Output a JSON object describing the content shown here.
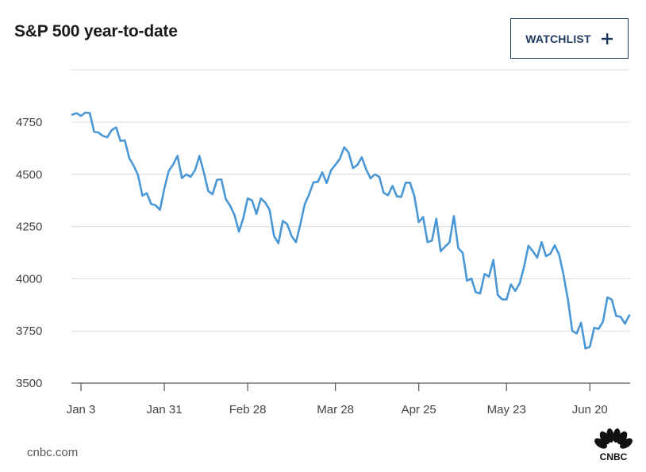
{
  "title": "S&P 500 year-to-date",
  "watchlist": {
    "label": "WATCHLIST",
    "icon": "plus-icon",
    "color": "#1e3a5f"
  },
  "source": "cnbc.com",
  "logo": {
    "name": "cnbc-peacock-logo",
    "text": "CNBC"
  },
  "chart_data": {
    "type": "line",
    "title": "S&P 500 year-to-date",
    "xlabel": "",
    "ylabel": "",
    "ylim": [
      3500,
      4850
    ],
    "yticks": [
      3500,
      3750,
      4000,
      4250,
      4500,
      4750
    ],
    "ytick_labels": [
      "3500",
      "3750",
      "4000",
      "4250",
      "4500",
      "4750"
    ],
    "xticks": [
      {
        "label": "Jan 3",
        "index": 2
      },
      {
        "label": "Jan 31",
        "index": 21
      },
      {
        "label": "Feb 28",
        "index": 40
      },
      {
        "label": "Mar 28",
        "index": 60
      },
      {
        "label": "Apr 25",
        "index": 79
      },
      {
        "label": "May 23",
        "index": 99
      },
      {
        "label": "Jun 20",
        "index": 118
      }
    ],
    "grid": true,
    "color": "#4a97d6",
    "series": [
      {
        "values": [
          4786,
          4793,
          4780,
          4796,
          4794,
          4704,
          4700,
          4684,
          4678,
          4712,
          4725,
          4660,
          4663,
          4578,
          4542,
          4496,
          4398,
          4410,
          4358,
          4352,
          4330,
          4432,
          4516,
          4547,
          4589,
          4482,
          4500,
          4488,
          4520,
          4588,
          4510,
          4420,
          4405,
          4474,
          4476,
          4382,
          4350,
          4305,
          4226,
          4290,
          4385,
          4375,
          4310,
          4385,
          4365,
          4330,
          4205,
          4170,
          4277,
          4262,
          4205,
          4175,
          4260,
          4357,
          4404,
          4462,
          4464,
          4510,
          4458,
          4520,
          4546,
          4574,
          4630,
          4605,
          4530,
          4545,
          4582,
          4524,
          4481,
          4500,
          4488,
          4412,
          4400,
          4445,
          4395,
          4392,
          4460,
          4460,
          4395,
          4271,
          4296,
          4175,
          4183,
          4288,
          4132,
          4154,
          4174,
          4300,
          4147,
          4124,
          3991,
          4001,
          3935,
          3930,
          4023,
          4010,
          4090,
          3923,
          3901,
          3901,
          3973,
          3942,
          3978,
          4057,
          4158,
          4132,
          4101,
          4176,
          4108,
          4120,
          4160,
          4115,
          4018,
          3900,
          3750,
          3738,
          3790,
          3666,
          3674,
          3765,
          3760,
          3795,
          3911,
          3900,
          3822,
          3818,
          3785,
          3825
        ]
      }
    ]
  }
}
